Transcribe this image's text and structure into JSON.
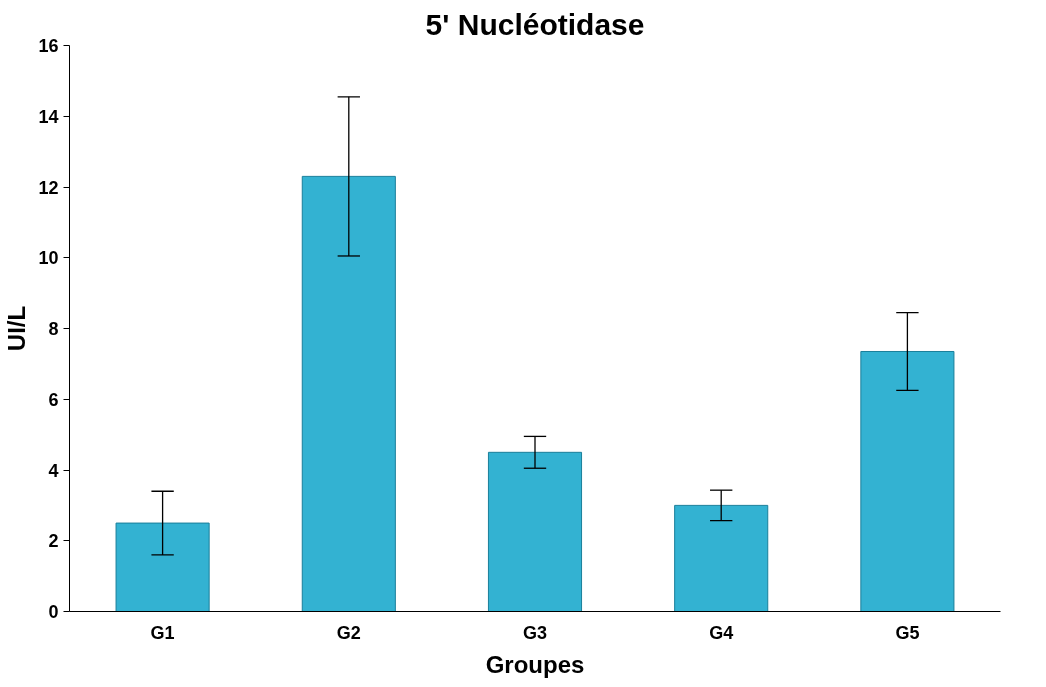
{
  "chart_data": {
    "type": "bar",
    "title": "5' Nucléotidase",
    "xlabel": "Groupes",
    "ylabel": "UI/L",
    "categories": [
      "G1",
      "G2",
      "G3",
      "G4",
      "G5"
    ],
    "values": [
      2.5,
      12.3,
      4.5,
      3.0,
      7.35
    ],
    "errors": [
      0.9,
      2.25,
      0.45,
      0.43,
      1.1
    ],
    "color": "#33b2d2",
    "ylim": [
      0,
      16
    ],
    "yticks": [
      0,
      2,
      4,
      6,
      8,
      10,
      12,
      14,
      16
    ],
    "grid": false
  }
}
